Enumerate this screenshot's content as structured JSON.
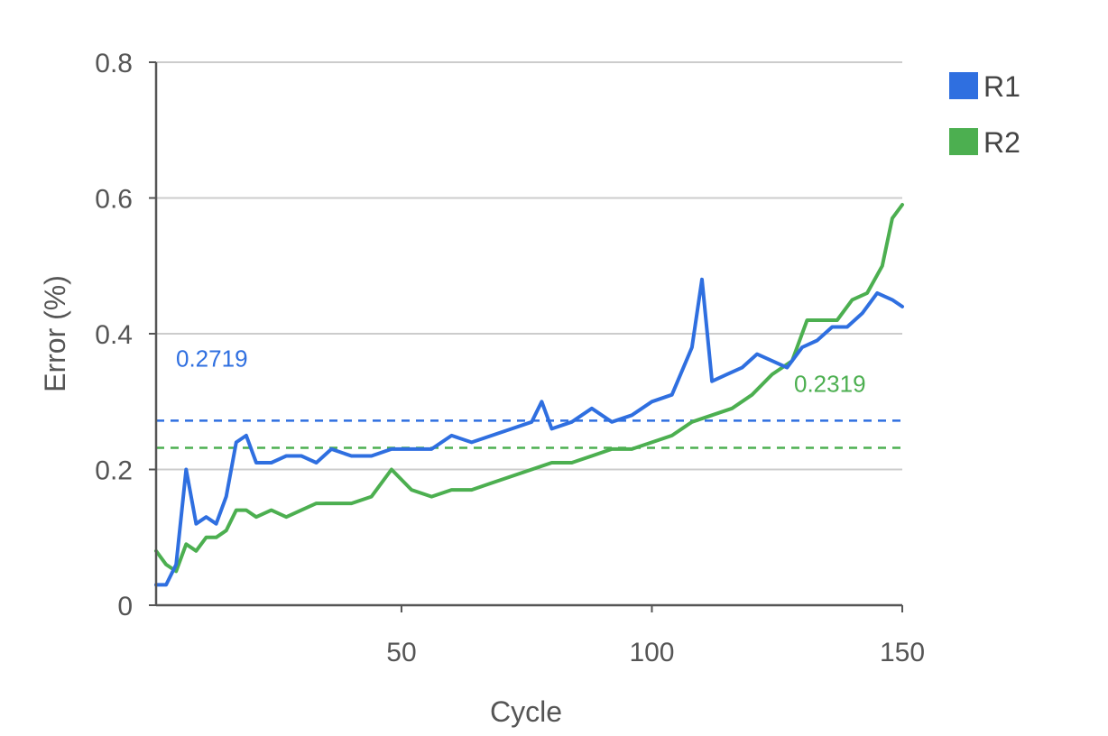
{
  "chart_data": {
    "type": "line",
    "xlabel": "Cycle",
    "ylabel": "Error (%)",
    "xlim": [
      1,
      150
    ],
    "ylim": [
      0,
      0.8
    ],
    "x_ticks": [
      "50",
      "100",
      "150"
    ],
    "y_ticks": [
      "0",
      "0.2",
      "0.4",
      "0.6",
      "0.8"
    ],
    "grid": true,
    "legend_position": "top-right",
    "series": [
      {
        "name": "R1",
        "color": "#2f6fe0",
        "x": [
          1,
          3,
          5,
          7,
          9,
          11,
          13,
          15,
          17,
          19,
          21,
          24,
          27,
          30,
          33,
          36,
          40,
          44,
          48,
          52,
          56,
          60,
          64,
          68,
          72,
          76,
          78,
          80,
          84,
          88,
          92,
          96,
          100,
          104,
          108,
          110,
          112,
          115,
          118,
          121,
          124,
          127,
          130,
          133,
          136,
          139,
          142,
          145,
          148,
          150
        ],
        "values": [
          0.03,
          0.03,
          0.06,
          0.2,
          0.12,
          0.13,
          0.12,
          0.16,
          0.24,
          0.25,
          0.21,
          0.21,
          0.22,
          0.22,
          0.21,
          0.23,
          0.22,
          0.22,
          0.23,
          0.23,
          0.23,
          0.25,
          0.24,
          0.25,
          0.26,
          0.27,
          0.3,
          0.26,
          0.27,
          0.29,
          0.27,
          0.28,
          0.3,
          0.31,
          0.38,
          0.48,
          0.33,
          0.34,
          0.35,
          0.37,
          0.36,
          0.35,
          0.38,
          0.39,
          0.41,
          0.41,
          0.43,
          0.46,
          0.45,
          0.44
        ]
      },
      {
        "name": "R2",
        "color": "#4caf50",
        "x": [
          1,
          3,
          5,
          7,
          9,
          11,
          13,
          15,
          17,
          19,
          21,
          24,
          27,
          30,
          33,
          36,
          40,
          44,
          48,
          52,
          56,
          60,
          64,
          68,
          72,
          76,
          80,
          84,
          88,
          92,
          96,
          100,
          104,
          108,
          112,
          116,
          120,
          124,
          128,
          131,
          134,
          137,
          140,
          143,
          146,
          148,
          150
        ],
        "values": [
          0.08,
          0.06,
          0.05,
          0.09,
          0.08,
          0.1,
          0.1,
          0.11,
          0.14,
          0.14,
          0.13,
          0.14,
          0.13,
          0.14,
          0.15,
          0.15,
          0.15,
          0.16,
          0.2,
          0.17,
          0.16,
          0.17,
          0.17,
          0.18,
          0.19,
          0.2,
          0.21,
          0.21,
          0.22,
          0.23,
          0.23,
          0.24,
          0.25,
          0.27,
          0.28,
          0.29,
          0.31,
          0.34,
          0.36,
          0.42,
          0.42,
          0.42,
          0.45,
          0.46,
          0.5,
          0.57,
          0.59
        ]
      }
    ],
    "reference_lines": [
      {
        "value": 0.2719,
        "label": "0.2719",
        "color": "#2f6fe0",
        "style": "dashed"
      },
      {
        "value": 0.2319,
        "label": "0.2319",
        "color": "#4caf50",
        "style": "dashed"
      }
    ]
  }
}
